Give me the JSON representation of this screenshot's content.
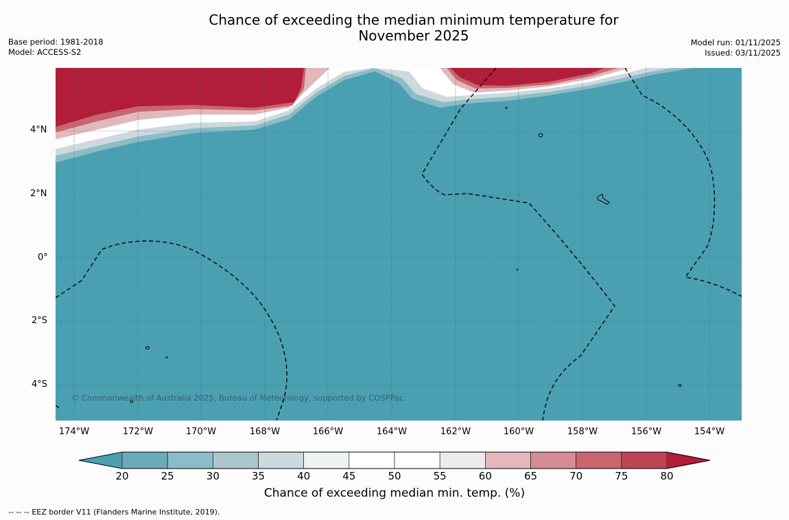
{
  "title": {
    "line1": "Chance of exceeding the median minimum temperature for",
    "line2": "November 2025"
  },
  "meta_left": {
    "base_period": "Base period: 1981-2018",
    "model": "Model: ACCESS-S2"
  },
  "meta_right": {
    "model_run": "Model run: 01/11/2025",
    "issued": "Issued: 03/11/2025"
  },
  "map": {
    "lat_labels": [
      "4°N",
      "2°N",
      "0°",
      "2°S",
      "4°S"
    ],
    "lon_labels": [
      "174°W",
      "172°W",
      "170°W",
      "168°W",
      "166°W",
      "164°W",
      "162°W",
      "160°W",
      "158°W",
      "156°W",
      "154°W"
    ],
    "credit": "© Commonwealth of Australia 2025, Bureau of Meteorology, supported by COSPPac",
    "colors": {
      "low_fill": "#4aa0b1",
      "high_fill": "#b21d3a",
      "eez_line": "#000000"
    }
  },
  "colorbar": {
    "ticks": [
      "20",
      "25",
      "30",
      "35",
      "40",
      "45",
      "50",
      "55",
      "60",
      "65",
      "70",
      "75",
      "80"
    ],
    "bins": [
      "#6cabba",
      "#8bbcc7",
      "#abc7cd",
      "#cdd9dc",
      "#edf2f3",
      "#ffffff",
      "#ffffff",
      "#ececec",
      "#e2b8bd",
      "#d68d96",
      "#c8666f",
      "#bd4454"
    ],
    "under_color": "#4aa0b1",
    "over_color": "#b21d3a",
    "label": "Chance of exceeding median min. temp. (%)"
  },
  "legend_note": "--  --  -- EEZ border V11 (Flanders Marine Institute, 2019)."
}
